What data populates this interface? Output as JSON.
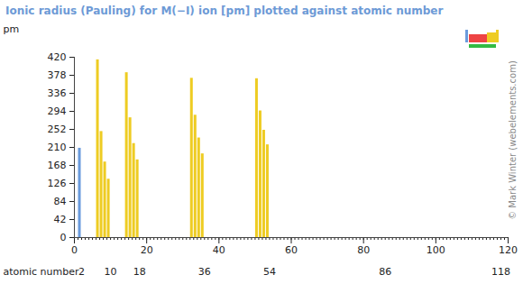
{
  "chart_data": {
    "type": "bar",
    "title": "Ionic radius (Pauling) for M(−I) ion [pm] plotted against atomic number",
    "y_label": "pm",
    "x_label": "atomic number",
    "credit": "© Mark Winter (webelements.com)",
    "x": [
      1,
      6,
      7,
      8,
      9,
      14,
      15,
      16,
      17,
      32,
      33,
      34,
      35,
      50,
      51,
      52,
      53
    ],
    "values": [
      208,
      414,
      247,
      176,
      136,
      384,
      279,
      219,
      181,
      371,
      285,
      232,
      195,
      370,
      295,
      250,
      216
    ],
    "colors": [
      "#6a9bdc",
      "#eecc22",
      "#eecc22",
      "#eecc22",
      "#eecc22",
      "#eecc22",
      "#eecc22",
      "#eecc22",
      "#eecc22",
      "#eecc22",
      "#eecc22",
      "#eecc22",
      "#eecc22",
      "#eecc22",
      "#eecc22",
      "#eecc22",
      "#eecc22"
    ],
    "xlim": [
      0,
      120
    ],
    "xticks": [
      0,
      20,
      40,
      60,
      80,
      100,
      120
    ],
    "x2ticks": [
      2,
      10,
      18,
      36,
      54,
      86,
      118
    ],
    "ylim": [
      0,
      420
    ],
    "yticks": [
      0,
      42,
      84,
      126,
      168,
      210,
      252,
      294,
      336,
      378,
      420
    ]
  }
}
